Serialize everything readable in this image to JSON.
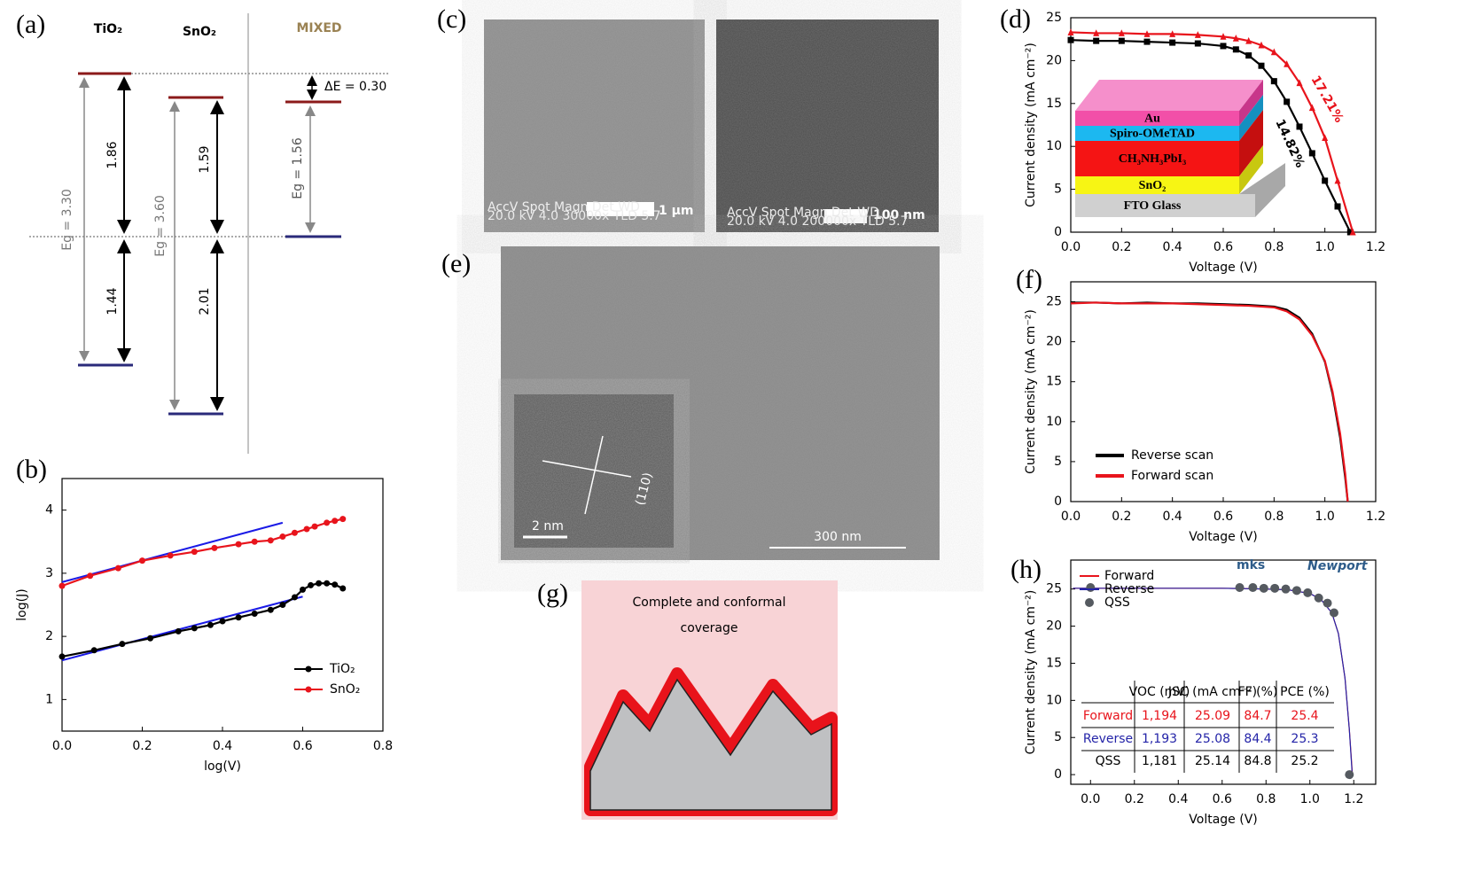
{
  "panel_labels": [
    "(a)",
    "(b)",
    "(c)",
    "(d)",
    "(e)",
    "(f)",
    "(g)",
    "(h)"
  ],
  "band_diagram": {
    "columns": [
      "TiO₂",
      "SnO₂",
      "MIXED"
    ],
    "gaps": [
      "Eg = 3.30",
      "Eg = 3.60",
      "Eg = 1.56"
    ],
    "upper": [
      "1.86",
      "1.59"
    ],
    "lower": [
      "1.44",
      "2.01"
    ],
    "offset": "ΔE = 0.30"
  },
  "sem": {
    "c_left": {
      "scale_bar": "1 µm",
      "info": [
        "AccV  Spot Magn   Det  WD",
        "20.0 kV 4.0  30000x  TLD 5.7"
      ]
    },
    "c_right": {
      "scale_bar": "100 nm",
      "info": [
        "AccV  Spot Magn   Det  WD",
        "20.0 kV 4.0  200000x TLD 5.7"
      ]
    },
    "e": {
      "scale_bar": "300 nm",
      "inset_scale_bar": "2 nm",
      "inset_plane": "(110)"
    }
  },
  "coverage": {
    "title": "Complete and conformal coverage"
  },
  "chart_data": [
    {
      "type": "line",
      "xlabel": "log(V)",
      "ylabel": "log(J)",
      "xlim": [
        0,
        0.8
      ],
      "xticks": [
        {
          "value": 0,
          "label": "0.0"
        },
        0.2,
        0.4,
        0.6,
        0.8
      ],
      "ylim": [
        0.5,
        4.5
      ],
      "yticks": [
        1,
        2,
        3,
        4
      ],
      "legend": "lower right",
      "series": [
        {
          "name": "TiO₂",
          "color": "#000000",
          "marker": "circle",
          "x": [
            0,
            0.08,
            0.15,
            0.22,
            0.29,
            0.33,
            0.37,
            0.4,
            0.44,
            0.48,
            0.52,
            0.55,
            0.58,
            0.6,
            0.62,
            0.64,
            0.66,
            0.68,
            0.7
          ],
          "values": [
            1.68,
            1.78,
            1.88,
            1.97,
            2.08,
            2.13,
            2.18,
            2.24,
            2.3,
            2.36,
            2.42,
            2.5,
            2.62,
            2.74,
            2.81,
            2.84,
            2.84,
            2.82,
            2.76
          ]
        },
        {
          "name": "SnO₂",
          "color": "#e8141c",
          "marker": "circle",
          "x": [
            0,
            0.07,
            0.14,
            0.2,
            0.27,
            0.33,
            0.38,
            0.44,
            0.48,
            0.52,
            0.55,
            0.58,
            0.61,
            0.63,
            0.66,
            0.68,
            0.7
          ],
          "values": [
            2.8,
            2.96,
            3.08,
            3.2,
            3.28,
            3.34,
            3.4,
            3.46,
            3.5,
            3.52,
            3.58,
            3.64,
            3.7,
            3.74,
            3.8,
            3.83,
            3.86
          ]
        }
      ],
      "fit_lines": [
        {
          "color": "#1a1ae6",
          "x": [
            0,
            0.55
          ],
          "values": [
            2.86,
            3.8
          ]
        },
        {
          "color": "#1a1ae6",
          "x": [
            0,
            0.6
          ],
          "values": [
            1.62,
            2.63
          ]
        }
      ]
    },
    {
      "type": "line",
      "xlabel": "Voltage (V)",
      "ylabel": "Current density (mA cm⁻²)",
      "xlim": [
        0,
        1.2
      ],
      "xticks": [
        {
          "value": 0,
          "label": "0.0"
        },
        0.2,
        0.4,
        0.6,
        0.8,
        {
          "value": 1,
          "label": "1.0"
        },
        1.2
      ],
      "ylim": [
        0,
        25
      ],
      "yticks": [
        0,
        5,
        10,
        15,
        20,
        25
      ],
      "series": [
        {
          "color": "#000000",
          "marker": "square",
          "x": [
            0,
            0.1,
            0.2,
            0.3,
            0.4,
            0.5,
            0.6,
            0.65,
            0.7,
            0.75,
            0.8,
            0.85,
            0.9,
            0.95,
            1.0,
            1.05,
            1.1
          ],
          "values": [
            22.4,
            22.3,
            22.3,
            22.2,
            22.1,
            22.0,
            21.7,
            21.3,
            20.6,
            19.4,
            17.6,
            15.2,
            12.3,
            9.2,
            6.0,
            3.0,
            0
          ]
        },
        {
          "color": "#e8141c",
          "marker": "triangle",
          "x": [
            0,
            0.1,
            0.2,
            0.3,
            0.4,
            0.5,
            0.6,
            0.65,
            0.7,
            0.75,
            0.8,
            0.85,
            0.9,
            0.95,
            1.0,
            1.05,
            1.11
          ],
          "values": [
            23.3,
            23.2,
            23.2,
            23.1,
            23.1,
            23.0,
            22.8,
            22.6,
            22.3,
            21.8,
            21.0,
            19.6,
            17.4,
            14.5,
            11.0,
            6.0,
            0
          ]
        }
      ],
      "annotations": [
        {
          "text": "14.82%",
          "color": "#000000"
        },
        {
          "text": "17.21%",
          "color": "#e8141c"
        }
      ],
      "inset_layers": [
        "Au",
        "Spiro-OMeTAD",
        "CH₃NH₃PbI₃",
        "SnO₂",
        "FTO Glass"
      ]
    },
    {
      "type": "line",
      "xlabel": "Voltage (V)",
      "ylabel": "Current density (mA cm⁻²)",
      "xlim": [
        0,
        1.2
      ],
      "xticks": [
        {
          "value": 0,
          "label": "0.0"
        },
        0.2,
        0.4,
        0.6,
        0.8,
        {
          "value": 1,
          "label": "1.0"
        },
        1.2
      ],
      "ylim": [
        0,
        27.5
      ],
      "yticks": [
        0,
        5,
        10,
        15,
        20,
        25
      ],
      "legend": "lower left",
      "series": [
        {
          "name": "Reverse scan",
          "color": "#000000",
          "x": [
            0,
            0.1,
            0.2,
            0.3,
            0.4,
            0.5,
            0.6,
            0.7,
            0.8,
            0.85,
            0.9,
            0.95,
            1.0,
            1.03,
            1.06,
            1.08,
            1.09
          ],
          "values": [
            24.9,
            24.9,
            24.8,
            24.9,
            24.8,
            24.8,
            24.7,
            24.6,
            24.4,
            24.0,
            23.0,
            21.0,
            17.5,
            13.5,
            8.0,
            3.0,
            0
          ]
        },
        {
          "name": "Forward scan",
          "color": "#e8141c",
          "x": [
            0,
            0.1,
            0.2,
            0.3,
            0.4,
            0.5,
            0.6,
            0.7,
            0.8,
            0.85,
            0.9,
            0.95,
            1.0,
            1.03,
            1.06,
            1.08,
            1.09
          ],
          "values": [
            24.8,
            24.9,
            24.8,
            24.8,
            24.8,
            24.7,
            24.6,
            24.5,
            24.3,
            23.8,
            22.8,
            20.8,
            17.6,
            13.8,
            8.5,
            3.5,
            0
          ]
        }
      ]
    },
    {
      "type": "line",
      "xlabel": "Voltage (V)",
      "ylabel": "Current density (mA cm⁻²)",
      "xlim": [
        -0.09,
        1.3
      ],
      "xticks": [
        {
          "value": 0,
          "label": "0.0"
        },
        0.2,
        0.4,
        0.6,
        0.8,
        {
          "value": 1,
          "label": "1.0"
        },
        1.2
      ],
      "ylim": [
        -1.3,
        28.9
      ],
      "yticks": [
        0,
        5,
        10,
        15,
        20,
        25
      ],
      "legend": "upper left",
      "series": [
        {
          "name": "Forward",
          "color": "#e8141c",
          "x": [
            -0.08,
            0,
            0.2,
            0.4,
            0.6,
            0.8,
            0.9,
            1.0,
            1.05,
            1.1,
            1.13,
            1.16,
            1.18,
            1.194
          ],
          "values": [
            25.1,
            25.1,
            25.1,
            25.1,
            25.1,
            25.0,
            24.9,
            24.4,
            23.6,
            21.8,
            19.0,
            13.0,
            6.0,
            0
          ]
        },
        {
          "name": "Reverse",
          "color": "#2424a8",
          "x": [
            -0.08,
            0,
            0.2,
            0.4,
            0.6,
            0.8,
            0.9,
            1.0,
            1.05,
            1.1,
            1.13,
            1.16,
            1.18,
            1.193
          ],
          "values": [
            25.1,
            25.1,
            25.1,
            25.1,
            25.1,
            25.0,
            24.9,
            24.4,
            23.6,
            21.8,
            19.0,
            13.0,
            6.0,
            0
          ]
        },
        {
          "name": "QSS",
          "color": "#555a60",
          "marker": "circle",
          "line": false,
          "x": [
            0,
            0.68,
            0.74,
            0.79,
            0.84,
            0.89,
            0.94,
            0.99,
            1.04,
            1.08,
            1.11,
            1.18
          ],
          "values": [
            25.2,
            25.2,
            25.2,
            25.1,
            25.1,
            25.0,
            24.8,
            24.5,
            23.8,
            23.1,
            21.8,
            0
          ]
        }
      ],
      "table": {
        "header": [
          "VOC (mV)",
          "JSC (mA cm⁻²)",
          "FF (%)",
          "PCE (%)"
        ],
        "rows": [
          [
            "Forward",
            "1,194",
            "25.09",
            "84.7",
            "25.4"
          ],
          [
            "Reverse",
            "1,193",
            "25.08",
            "84.4",
            "25.3"
          ],
          [
            "QSS",
            "1,181",
            "25.14",
            "84.8",
            "25.2"
          ]
        ]
      },
      "logos": [
        "mks",
        "Newport"
      ]
    }
  ]
}
